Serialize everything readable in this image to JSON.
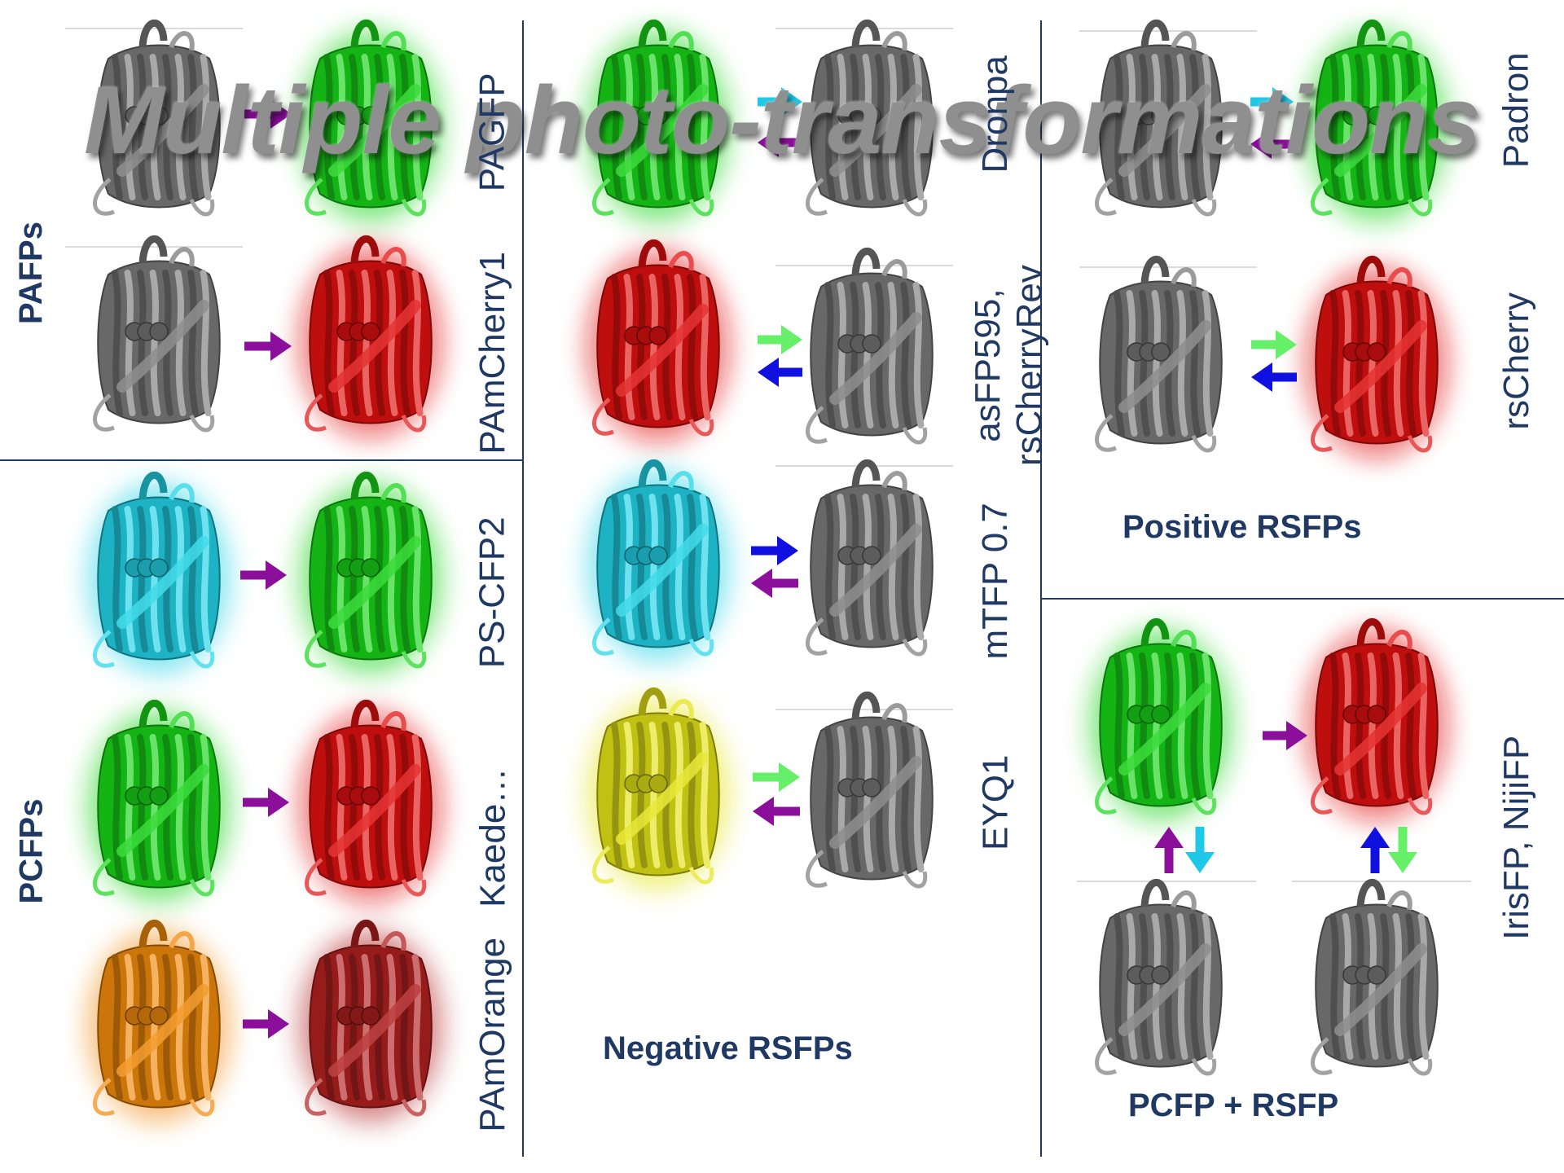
{
  "title": "Multiple photo-transformations",
  "groups": {
    "pafps": "PAFPs",
    "pcfps": "PCFPs",
    "negative_rsfps": "Negative RSFPs",
    "positive_rsfps": "Positive RSFPs",
    "pcfp_rsfp": "PCFP + RSFP"
  },
  "proteins": {
    "pagfp": "PAGFP",
    "pamcherry1": "PAmCherry1",
    "ps_cfp2": "PS-CFP2",
    "kaede": "Kaede…",
    "pamorange": "PAmOrange",
    "dronpa": "Dronpa",
    "asfp595_line1": "asFP595,",
    "asfp595_line2": "rsCherryRev",
    "mtfp": "mTFP 0.7",
    "eyq1": "EYQ1",
    "padron": "Padron",
    "rscherry": "rsCherry",
    "irisfp": "IrisFP, NijiFP"
  },
  "colors": {
    "dark_state": "#7a7a7a",
    "green": "#19d419",
    "red": "#e01010",
    "cyan": "#22d3e6",
    "yellow": "#e3e318",
    "orange": "#f08a0c",
    "dark_red": "#b02020",
    "arrow_purple": "#8b0f9b",
    "arrow_blue": "#1010e0",
    "arrow_cyan": "#20c8e8",
    "arrow_lightgreen": "#66f06a",
    "divider": "#1f3864",
    "label_navy": "#1f3864"
  }
}
